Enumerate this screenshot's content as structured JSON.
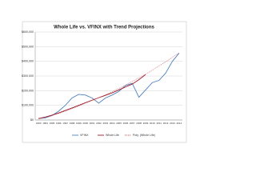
{
  "chart_data": {
    "type": "line",
    "title": "Whole Life vs. VFINX with Trend Projections",
    "categories": [
      "1993",
      "1994",
      "1995",
      "1996",
      "1997",
      "1998",
      "1999",
      "2000",
      "2001",
      "2002",
      "2003",
      "2004",
      "2005",
      "2006",
      "2007",
      "2008",
      "2009",
      "2010",
      "2011",
      "2012",
      "2013",
      "2014"
    ],
    "series": [
      {
        "name": "VFINX",
        "color": "#4f81bd",
        "style": "solid",
        "values": [
          10000,
          15000,
          30000,
          60000,
          100000,
          150000,
          175000,
          170000,
          150000,
          115000,
          150000,
          170000,
          195000,
          235000,
          250000,
          155000,
          205000,
          255000,
          270000,
          320000,
          400000,
          455000
        ]
      },
      {
        "name": "Whole Life",
        "color": "#9b1b30",
        "style": "solid",
        "values": [
          10000,
          20000,
          33000,
          48000,
          65000,
          82000,
          100000,
          118000,
          135000,
          152000,
          168000,
          185000,
          205000,
          225000,
          245000,
          275000,
          310000,
          null,
          null,
          null,
          null,
          null
        ]
      },
      {
        "name": "Poly. (Whole Life)",
        "color": "#c0504d",
        "style": "dotted",
        "values": [
          8000,
          18000,
          30000,
          44000,
          60000,
          77000,
          95000,
          114000,
          133000,
          152000,
          172000,
          193000,
          215000,
          238000,
          262000,
          287000,
          313000,
          340000,
          368000,
          397000,
          427000,
          458000
        ]
      }
    ],
    "ylim": [
      0,
      600000
    ],
    "yticks": [
      {
        "value": 0,
        "label": "$0"
      },
      {
        "value": 100000,
        "label": "$100,000"
      },
      {
        "value": 200000,
        "label": "$200,000"
      },
      {
        "value": 300000,
        "label": "$300,000"
      },
      {
        "value": 400000,
        "label": "$400,000"
      },
      {
        "value": 500000,
        "label": "$500,000"
      },
      {
        "value": 600000,
        "label": "$600,000"
      }
    ],
    "grid": true,
    "legend": "bottom"
  }
}
